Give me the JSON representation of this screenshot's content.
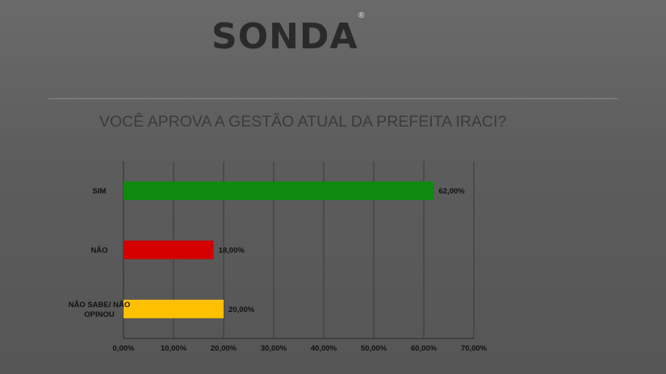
{
  "logo": {
    "text": "SONDA",
    "registered_mark": "®"
  },
  "chart_data": {
    "type": "bar",
    "orientation": "horizontal",
    "title": "VOCÊ APROVA A GESTÃO ATUAL DA PREFEITA IRACI?",
    "categories": [
      "SIM",
      "NÃO",
      "NÃO SABE/ NÃO OPINOU"
    ],
    "category_lines": [
      [
        "SIM"
      ],
      [
        "NÃO"
      ],
      [
        "NÃO SABE/ NÃO",
        "OPINOU"
      ]
    ],
    "values": [
      62,
      18,
      20
    ],
    "data_labels": [
      "62,00%",
      "18,00%",
      "20,00%"
    ],
    "colors": [
      "#0f8a0f",
      "#d40000",
      "#ffc000"
    ],
    "xlim": [
      0,
      70
    ],
    "x_ticks": [
      0,
      10,
      20,
      30,
      40,
      50,
      60,
      70
    ],
    "x_tick_labels": [
      "0,00%",
      "10,00%",
      "20,00%",
      "30,00%",
      "40,00%",
      "50,00%",
      "60,00%",
      "70,00%"
    ],
    "grid": true,
    "legend": "none",
    "gridline_color": "#3a3a3a"
  }
}
